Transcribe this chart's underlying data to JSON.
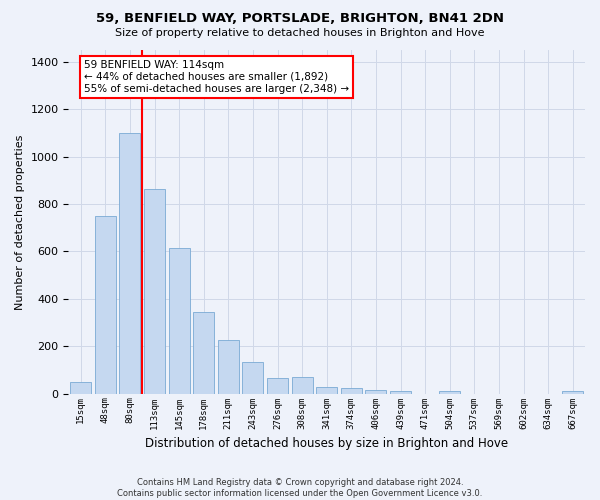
{
  "title1": "59, BENFIELD WAY, PORTSLADE, BRIGHTON, BN41 2DN",
  "title2": "Size of property relative to detached houses in Brighton and Hove",
  "xlabel": "Distribution of detached houses by size in Brighton and Hove",
  "ylabel": "Number of detached properties",
  "footer1": "Contains HM Land Registry data © Crown copyright and database right 2024.",
  "footer2": "Contains public sector information licensed under the Open Government Licence v3.0.",
  "annotation_title": "59 BENFIELD WAY: 114sqm",
  "annotation_line1": "← 44% of detached houses are smaller (1,892)",
  "annotation_line2": "55% of semi-detached houses are larger (2,348) →",
  "bar_values": [
    50,
    750,
    1100,
    865,
    615,
    345,
    225,
    135,
    65,
    70,
    30,
    25,
    15,
    10,
    0,
    10,
    0,
    0,
    0,
    0,
    10
  ],
  "categories": [
    "15sqm",
    "48sqm",
    "80sqm",
    "113sqm",
    "145sqm",
    "178sqm",
    "211sqm",
    "243sqm",
    "276sqm",
    "308sqm",
    "341sqm",
    "374sqm",
    "406sqm",
    "439sqm",
    "471sqm",
    "504sqm",
    "537sqm",
    "569sqm",
    "602sqm",
    "634sqm",
    "667sqm"
  ],
  "bar_color": "#c5d8f0",
  "bar_edge_color": "#7aaad4",
  "vline_color": "red",
  "vline_pos": 3,
  "background_color": "#eef2fa",
  "ylim": [
    0,
    1450
  ],
  "grid_color": "#d0d8e8",
  "annotation_box_color": "white",
  "annotation_box_edge": "red"
}
